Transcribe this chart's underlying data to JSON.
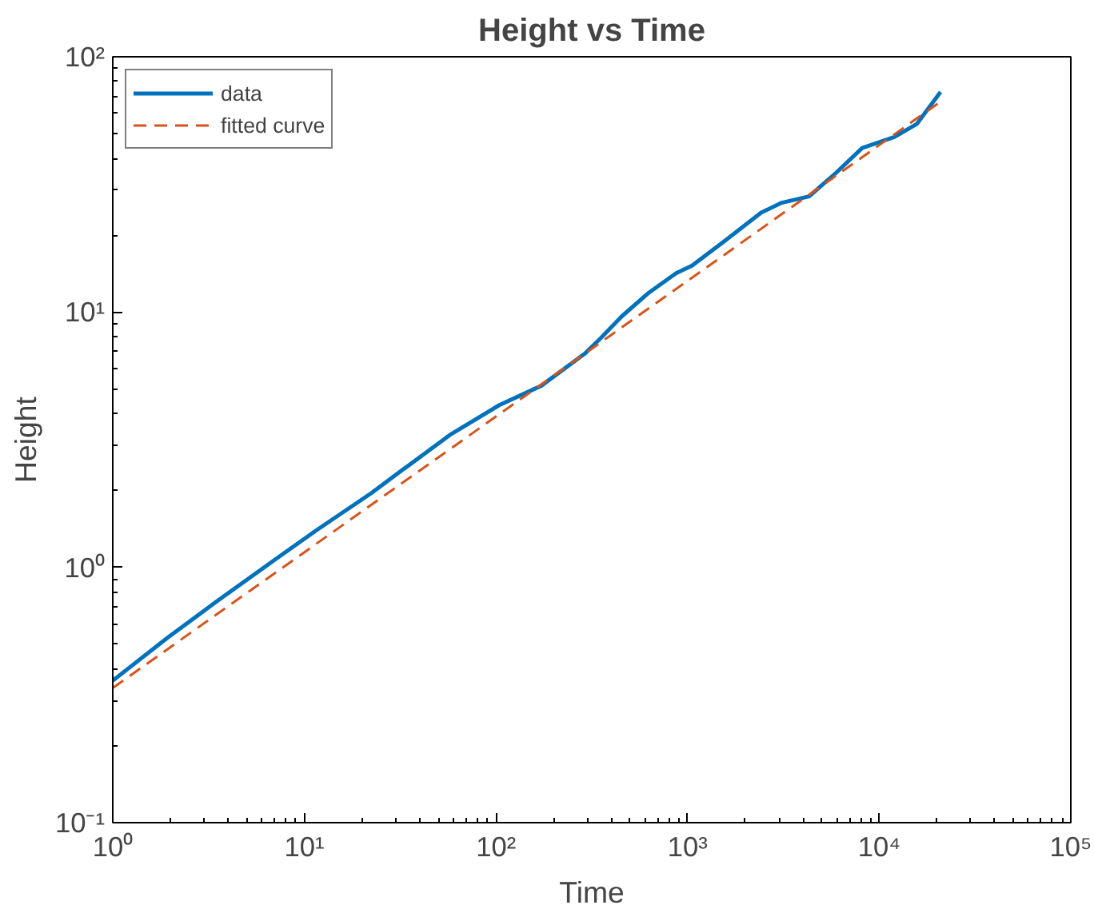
{
  "chart_data": {
    "type": "line",
    "title": "Height vs Time",
    "xlabel": "Time",
    "ylabel": "Height",
    "log": "xy",
    "grid": false,
    "legend": "top left",
    "line_style": "solid",
    "marker": "none",
    "xlim": [
      1,
      100000
    ],
    "ylim": [
      0.1,
      100
    ],
    "xticks": [
      {
        "value": 1,
        "label": "10⁰"
      },
      {
        "value": 10,
        "label": "10¹"
      },
      {
        "value": 100,
        "label": "10²"
      },
      {
        "value": 1000,
        "label": "10³"
      },
      {
        "value": 10000,
        "label": "10⁴"
      },
      {
        "value": 100000,
        "label": "10⁵"
      }
    ],
    "yticks": [
      {
        "value": 0.1,
        "label": "10⁻¹"
      },
      {
        "value": 1,
        "label": "10⁰"
      },
      {
        "value": 10,
        "label": "10¹"
      },
      {
        "value": 100,
        "label": "10²"
      }
    ],
    "series": [
      {
        "name": "data",
        "color": "#0072bd",
        "x": [
          1,
          1.93,
          3.44,
          7.0,
          11.6,
          22.3,
          32.8,
          58.5,
          104,
          172,
          290,
          352,
          452,
          627,
          871,
          1055,
          1550,
          2420,
          3100,
          4310,
          5980,
          8150,
          12000,
          15700,
          20900
        ],
        "values": [
          0.36,
          0.53,
          0.73,
          1.07,
          1.4,
          1.95,
          2.42,
          3.33,
          4.32,
          5.14,
          6.86,
          7.9,
          9.6,
          11.9,
          14.2,
          15.2,
          18.9,
          24.5,
          26.8,
          28.4,
          35.2,
          43.9,
          48.5,
          54.5,
          72.8
        ]
      },
      {
        "name": "fitted curve",
        "color": "#d95319",
        "line_style": "dashed",
        "x": [
          1,
          20900
        ],
        "values": [
          0.337,
          66.7
        ]
      }
    ]
  }
}
